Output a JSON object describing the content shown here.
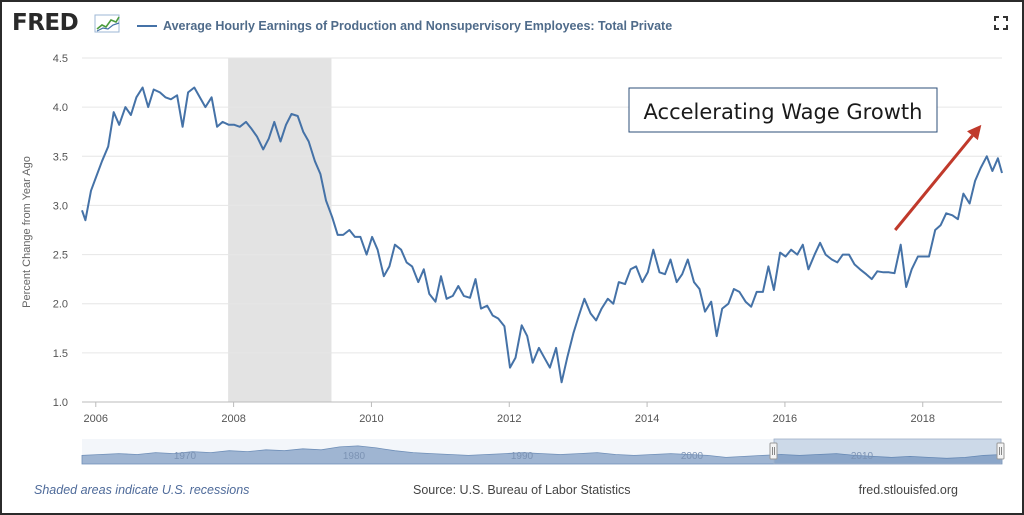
{
  "header": {
    "logo": "FRED",
    "series_title": "Average Hourly Earnings of Production and Nonsupervisory Employees: Total Private"
  },
  "annotation": "Accelerating Wage Growth",
  "footer": {
    "recession_note": "Shaded areas indicate U.S. recessions",
    "source": "Source: U.S. Bureau of Labor Statistics",
    "site": "fred.stlouisfed.org"
  },
  "colors": {
    "line": "#4572a7",
    "recession": "#e3e3e3",
    "arrow": "#c0392b",
    "navigator": "#8fa8c8"
  },
  "chart_data": {
    "type": "line",
    "title": "Average Hourly Earnings of Production and Nonsupervisory Employees: Total Private",
    "ylabel": "Percent Change from Year Ago",
    "xlabel": "",
    "xlim": [
      2005.8,
      2019.15
    ],
    "ylim": [
      1.0,
      4.5
    ],
    "yticks": [
      "1.0",
      "1.5",
      "2.0",
      "2.5",
      "3.0",
      "3.5",
      "4.0",
      "4.5"
    ],
    "xticks": [
      "2006",
      "2008",
      "2010",
      "2012",
      "2014",
      "2016",
      "2018"
    ],
    "grid": "horizontal",
    "recessions": [
      [
        2007.92,
        2009.42
      ]
    ],
    "navigator_labels": [
      "1970",
      "1980",
      "1990",
      "2000",
      "2010"
    ],
    "series": [
      {
        "name": "Average Hourly Earnings of Production and Nonsupervisory Employees: Total Private",
        "x": [
          2005.8,
          2005.85,
          2005.93,
          2006.01,
          2006.09,
          2006.18,
          2006.26,
          2006.34,
          2006.43,
          2006.51,
          2006.59,
          2006.68,
          2006.76,
          2006.84,
          2006.93,
          2007.01,
          2007.09,
          2007.18,
          2007.26,
          2007.34,
          2007.43,
          2007.51,
          2007.59,
          2007.68,
          2007.76,
          2007.84,
          2007.93,
          2008.01,
          2008.09,
          2008.18,
          2008.26,
          2008.34,
          2008.43,
          2008.51,
          2008.59,
          2008.68,
          2008.76,
          2008.84,
          2008.93,
          2009.01,
          2009.09,
          2009.18,
          2009.26,
          2009.34,
          2009.43,
          2009.51,
          2009.59,
          2009.68,
          2009.76,
          2009.84,
          2009.93,
          2010.01,
          2010.09,
          2010.18,
          2010.26,
          2010.34,
          2010.43,
          2010.51,
          2010.59,
          2010.68,
          2010.76,
          2010.84,
          2010.93,
          2011.01,
          2011.09,
          2011.18,
          2011.26,
          2011.34,
          2011.43,
          2011.51,
          2011.59,
          2011.68,
          2011.76,
          2011.84,
          2011.93,
          2012.01,
          2012.09,
          2012.18,
          2012.26,
          2012.34,
          2012.43,
          2012.51,
          2012.59,
          2012.68,
          2012.76,
          2012.84,
          2012.93,
          2013.01,
          2013.09,
          2013.18,
          2013.26,
          2013.34,
          2013.43,
          2013.51,
          2013.59,
          2013.68,
          2013.76,
          2013.84,
          2013.93,
          2014.01,
          2014.09,
          2014.18,
          2014.26,
          2014.34,
          2014.43,
          2014.51,
          2014.59,
          2014.68,
          2014.76,
          2014.84,
          2014.93,
          2015.01,
          2015.09,
          2015.18,
          2015.26,
          2015.34,
          2015.43,
          2015.51,
          2015.59,
          2015.68,
          2015.76,
          2015.84,
          2015.93,
          2016.01,
          2016.09,
          2016.18,
          2016.26,
          2016.34,
          2016.43,
          2016.51,
          2016.59,
          2016.68,
          2016.76,
          2016.84,
          2016.93,
          2017.01,
          2017.09,
          2017.18,
          2017.26,
          2017.34,
          2017.43,
          2017.51,
          2017.59,
          2017.68,
          2017.76,
          2017.84,
          2017.93,
          2018.01,
          2018.09,
          2018.18,
          2018.26,
          2018.34,
          2018.43,
          2018.51,
          2018.59,
          2018.68,
          2018.76,
          2018.84,
          2018.93,
          2019.01,
          2019.09,
          2019.15
        ],
        "y": [
          2.95,
          2.85,
          3.15,
          3.3,
          3.45,
          3.6,
          3.95,
          3.82,
          4.0,
          3.92,
          4.1,
          4.2,
          4.0,
          4.18,
          4.15,
          4.1,
          4.08,
          4.12,
          3.8,
          4.15,
          4.2,
          4.1,
          4.0,
          4.1,
          3.8,
          3.85,
          3.82,
          3.82,
          3.8,
          3.85,
          3.78,
          3.7,
          3.57,
          3.68,
          3.85,
          3.65,
          3.82,
          3.93,
          3.91,
          3.75,
          3.65,
          3.45,
          3.32,
          3.05,
          2.88,
          2.7,
          2.7,
          2.75,
          2.68,
          2.68,
          2.5,
          2.68,
          2.55,
          2.28,
          2.38,
          2.6,
          2.55,
          2.42,
          2.38,
          2.22,
          2.35,
          2.1,
          2.02,
          2.28,
          2.05,
          2.08,
          2.18,
          2.08,
          2.06,
          2.25,
          1.95,
          1.98,
          1.88,
          1.85,
          1.77,
          1.35,
          1.45,
          1.78,
          1.67,
          1.4,
          1.55,
          1.45,
          1.35,
          1.55,
          1.2,
          1.45,
          1.7,
          1.88,
          2.05,
          1.9,
          1.83,
          1.95,
          2.05,
          2.0,
          2.22,
          2.2,
          2.35,
          2.38,
          2.22,
          2.32,
          2.55,
          2.32,
          2.3,
          2.45,
          2.22,
          2.3,
          2.45,
          2.22,
          2.15,
          1.92,
          2.02,
          1.67,
          1.95,
          2.0,
          2.15,
          2.12,
          2.02,
          1.97,
          2.12,
          2.12,
          2.38,
          2.14,
          2.52,
          2.48,
          2.55,
          2.5,
          2.6,
          2.35,
          2.5,
          2.62,
          2.5,
          2.45,
          2.42,
          2.5,
          2.5,
          2.4,
          2.35,
          2.3,
          2.25,
          2.33,
          2.32,
          2.32,
          2.31,
          2.6,
          2.17,
          2.35,
          2.48,
          2.48,
          2.48,
          2.75,
          2.8,
          2.92,
          2.9,
          2.86,
          3.12,
          3.02,
          3.25,
          3.38,
          3.5,
          3.35,
          3.48,
          3.33
        ]
      }
    ],
    "annotations": [
      {
        "text": "Accelerating Wage Growth",
        "type": "box"
      },
      {
        "type": "arrow",
        "from": [
          2017.6,
          2.75
        ],
        "to": [
          2018.85,
          3.82
        ]
      }
    ]
  }
}
